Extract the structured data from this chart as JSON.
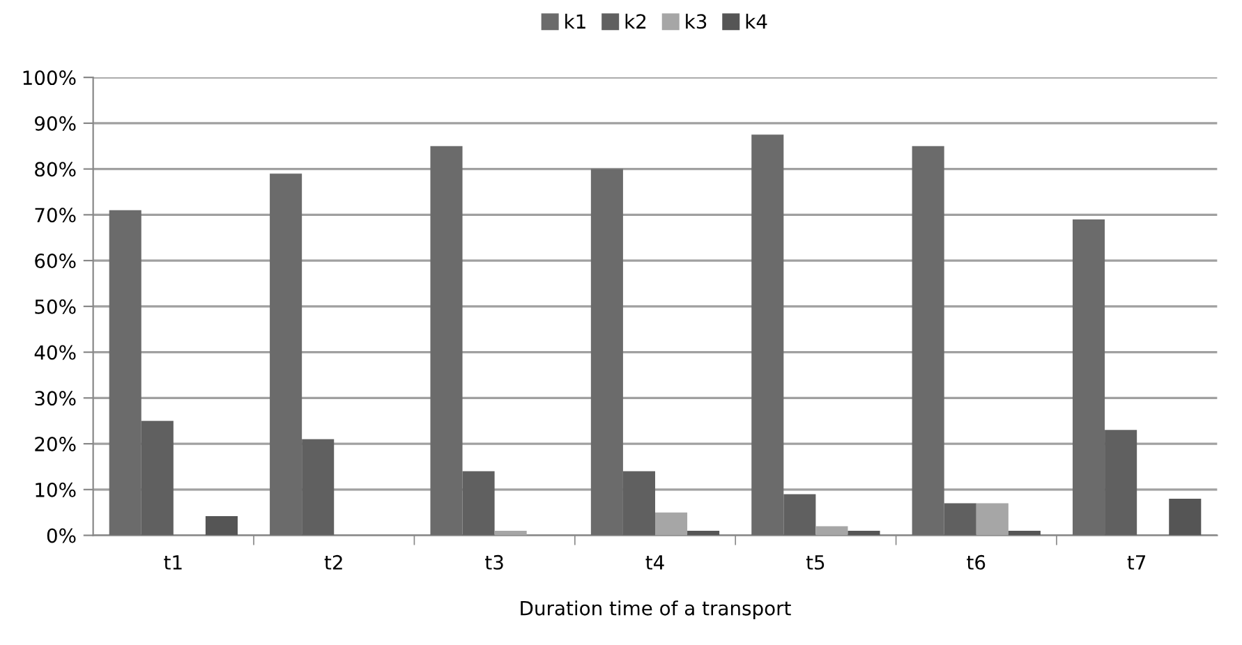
{
  "chart_data": {
    "type": "bar",
    "xlabel": "Duration time of a transport",
    "categories": [
      "t1",
      "t2",
      "t3",
      "t4",
      "t5",
      "t6",
      "t7"
    ],
    "series": [
      {
        "name": "k1",
        "color": "#6b6b6b",
        "values": [
          71,
          79,
          85,
          80,
          87.5,
          85,
          69
        ]
      },
      {
        "name": "k2",
        "color": "#606060",
        "values": [
          25,
          21,
          14,
          14,
          9,
          7,
          23
        ]
      },
      {
        "name": "k3",
        "color": "#a6a6a6",
        "values": [
          0,
          0,
          1,
          5,
          2,
          7,
          0
        ]
      },
      {
        "name": "k4",
        "color": "#555555",
        "values": [
          4.2,
          0,
          0,
          1,
          1,
          1,
          8
        ]
      }
    ],
    "ylim": [
      0,
      100
    ],
    "yticks": [
      {
        "value": 0,
        "label": "0%"
      },
      {
        "value": 10,
        "label": "10%"
      },
      {
        "value": 20,
        "label": "20%"
      },
      {
        "value": 30,
        "label": "30%"
      },
      {
        "value": 40,
        "label": "40%"
      },
      {
        "value": 50,
        "label": "50%"
      },
      {
        "value": 60,
        "label": "60%"
      },
      {
        "value": 70,
        "label": "70%"
      },
      {
        "value": 80,
        "label": "80%"
      },
      {
        "value": 90,
        "label": "90%"
      },
      {
        "value": 100,
        "label": "100%"
      }
    ],
    "grid": "y",
    "legend": "top"
  }
}
